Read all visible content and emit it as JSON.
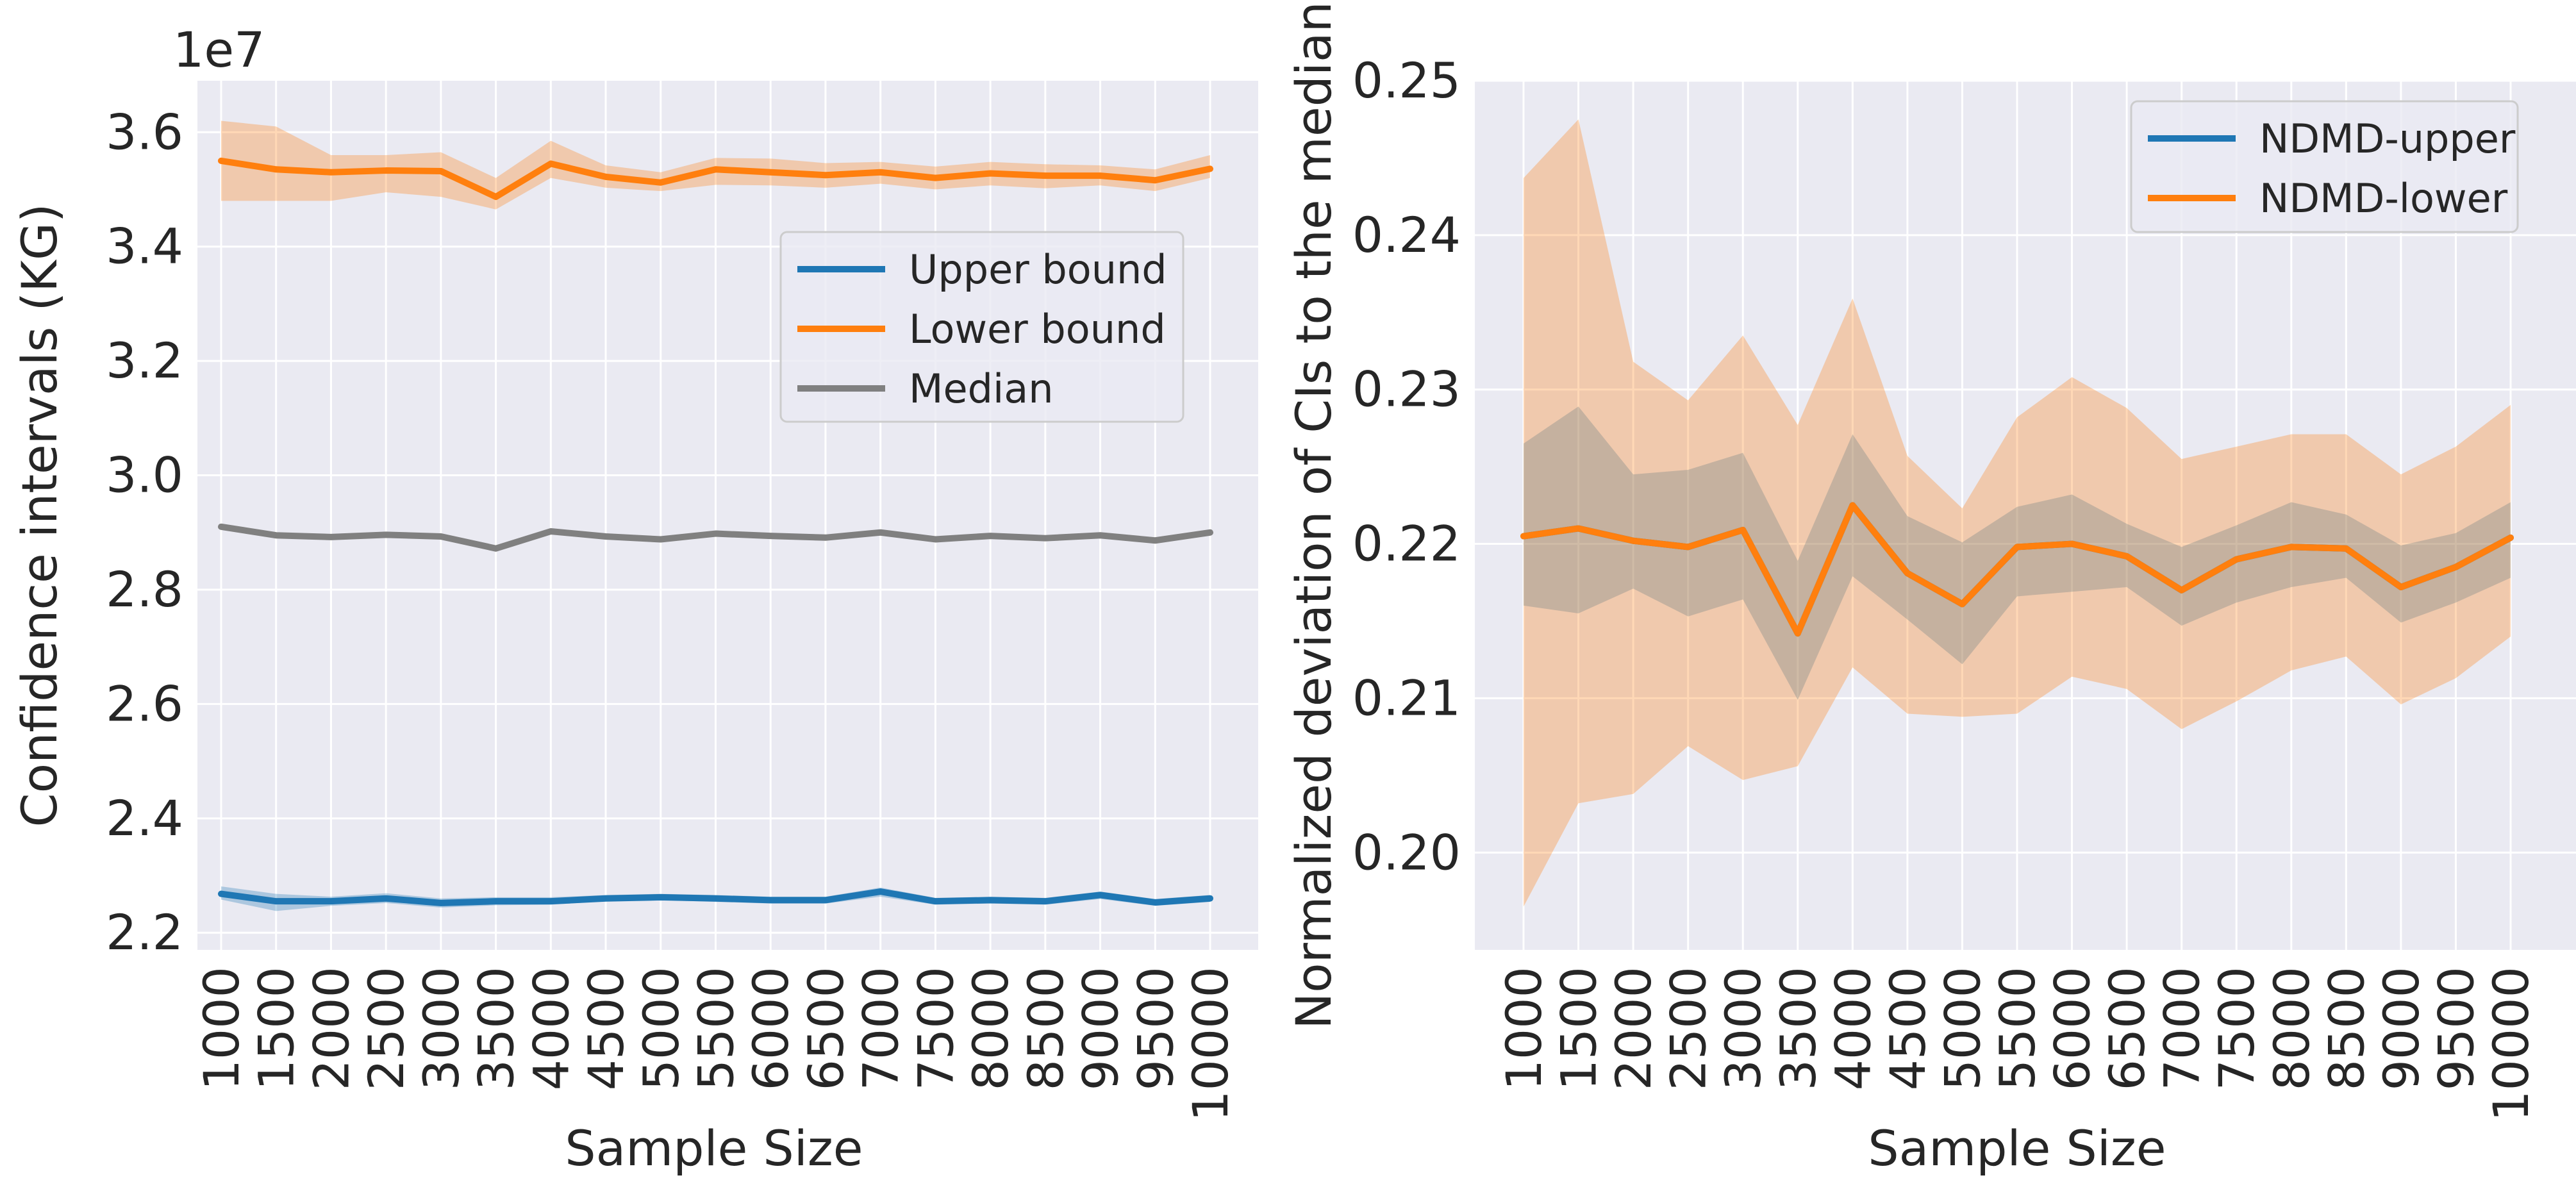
{
  "chart_data": [
    {
      "type": "line",
      "xlabel": "Sample Size",
      "ylabel": "Confidence intervals (KG)",
      "offset_label": "1e7",
      "x": [
        1000,
        1500,
        2000,
        2500,
        3000,
        3500,
        4000,
        4500,
        5000,
        5500,
        6000,
        6500,
        7000,
        7500,
        8000,
        8500,
        9000,
        9500,
        10000
      ],
      "x_tick_labels": [
        "1000",
        "1500",
        "2000",
        "2500",
        "3000",
        "3500",
        "4000",
        "4500",
        "5000",
        "5500",
        "6000",
        "6500",
        "7000",
        "7500",
        "8000",
        "8500",
        "9000",
        "9500",
        "10000"
      ],
      "y_ticks": [
        2.2,
        2.4,
        2.6,
        2.8,
        3.0,
        3.2,
        3.4,
        3.6
      ],
      "y_tick_labels": [
        "2.2",
        "2.4",
        "2.6",
        "2.8",
        "3.0",
        "3.2",
        "3.4",
        "3.6"
      ],
      "ylim": [
        2.17,
        3.69
      ],
      "grid": true,
      "legend_position": "center-right",
      "series": [
        {
          "name": "Upper bound",
          "color": "#1f77b4",
          "values": [
            2.268,
            2.255,
            2.255,
            2.26,
            2.252,
            2.255,
            2.255,
            2.26,
            2.262,
            2.26,
            2.257,
            2.257,
            2.272,
            2.255,
            2.257,
            2.255,
            2.266,
            2.253,
            2.26
          ],
          "band_low": [
            2.258,
            2.238,
            2.247,
            2.252,
            2.244,
            2.248,
            2.249,
            2.255,
            2.257,
            2.254,
            2.251,
            2.251,
            2.263,
            2.249,
            2.251,
            2.249,
            2.259,
            2.247,
            2.254
          ],
          "band_high": [
            2.281,
            2.268,
            2.263,
            2.269,
            2.26,
            2.262,
            2.262,
            2.266,
            2.268,
            2.266,
            2.263,
            2.263,
            2.279,
            2.261,
            2.263,
            2.261,
            2.272,
            2.259,
            2.266
          ]
        },
        {
          "name": "Lower bound",
          "color": "#ff7f0e",
          "values": [
            3.55,
            3.535,
            3.53,
            3.533,
            3.532,
            3.487,
            3.545,
            3.522,
            3.512,
            3.535,
            3.53,
            3.525,
            3.53,
            3.52,
            3.528,
            3.524,
            3.524,
            3.516,
            3.536
          ],
          "band_low": [
            3.48,
            3.48,
            3.48,
            3.495,
            3.487,
            3.465,
            3.52,
            3.503,
            3.497,
            3.508,
            3.507,
            3.503,
            3.51,
            3.5,
            3.507,
            3.502,
            3.507,
            3.497,
            3.52
          ],
          "band_high": [
            3.62,
            3.61,
            3.56,
            3.56,
            3.565,
            3.52,
            3.585,
            3.542,
            3.53,
            3.555,
            3.554,
            3.546,
            3.548,
            3.54,
            3.548,
            3.544,
            3.542,
            3.535,
            3.56
          ]
        },
        {
          "name": "Median",
          "color": "#808080",
          "values": [
            2.91,
            2.895,
            2.892,
            2.896,
            2.893,
            2.872,
            2.902,
            2.893,
            2.888,
            2.898,
            2.894,
            2.891,
            2.9,
            2.888,
            2.894,
            2.89,
            2.895,
            2.886,
            2.9
          ],
          "band_low": null,
          "band_high": null
        }
      ]
    },
    {
      "type": "line",
      "xlabel": "Sample Size",
      "ylabel": "Normalized deviation of CIs to the median",
      "x": [
        1000,
        1500,
        2000,
        2500,
        3000,
        3500,
        4000,
        4500,
        5000,
        5500,
        6000,
        6500,
        7000,
        7500,
        8000,
        8500,
        9000,
        9500,
        10000
      ],
      "x_tick_labels": [
        "1000",
        "1500",
        "2000",
        "2500",
        "3000",
        "3500",
        "4000",
        "4500",
        "5000",
        "5500",
        "6000",
        "6500",
        "7000",
        "7500",
        "8000",
        "8500",
        "9000",
        "9500",
        "10000"
      ],
      "y_ticks": [
        0.2,
        0.21,
        0.22,
        0.23,
        0.24,
        0.25
      ],
      "y_tick_labels": [
        "0.20",
        "0.21",
        "0.22",
        "0.23",
        "0.24",
        "0.25"
      ],
      "ylim": [
        0.1937,
        0.25
      ],
      "grid": true,
      "legend_position": "top-right",
      "series": [
        {
          "name": "NDMD-upper",
          "color": "#1f77b4",
          "values": [
            0.2205,
            0.221,
            0.2202,
            0.2198,
            0.2209,
            0.2142,
            0.2225,
            0.2181,
            0.2161,
            0.2198,
            0.22,
            0.2192,
            0.217,
            0.219,
            0.2198,
            0.2197,
            0.2172,
            0.2185,
            0.2204
          ],
          "band_low": [
            0.216,
            0.2155,
            0.2171,
            0.2153,
            0.2164,
            0.2099,
            0.2179,
            0.2151,
            0.2122,
            0.2166,
            0.2169,
            0.2172,
            0.2147,
            0.2162,
            0.2172,
            0.2178,
            0.2149,
            0.2162,
            0.2178
          ],
          "band_high": [
            0.2265,
            0.2289,
            0.2245,
            0.2248,
            0.2259,
            0.2189,
            0.2271,
            0.2218,
            0.2201,
            0.2224,
            0.2232,
            0.2213,
            0.2198,
            0.2212,
            0.2227,
            0.2219,
            0.2199,
            0.2207,
            0.2227
          ]
        },
        {
          "name": "NDMD-lower",
          "color": "#ff7f0e",
          "values": [
            0.2205,
            0.221,
            0.2202,
            0.2198,
            0.2209,
            0.2142,
            0.2225,
            0.2181,
            0.2161,
            0.2198,
            0.22,
            0.2192,
            0.217,
            0.219,
            0.2198,
            0.2197,
            0.2172,
            0.2185,
            0.2204
          ],
          "band_low": [
            0.1965,
            0.2032,
            0.2038,
            0.2069,
            0.2047,
            0.2056,
            0.212,
            0.209,
            0.2088,
            0.209,
            0.2114,
            0.2106,
            0.208,
            0.2098,
            0.2118,
            0.2127,
            0.2096,
            0.2113,
            0.214
          ],
          "band_high": [
            0.2437,
            0.2475,
            0.2318,
            0.2293,
            0.2335,
            0.2277,
            0.2359,
            0.2257,
            0.2223,
            0.2282,
            0.2308,
            0.2288,
            0.2255,
            0.2263,
            0.2271,
            0.2271,
            0.2245,
            0.2263,
            0.229
          ]
        }
      ]
    }
  ]
}
